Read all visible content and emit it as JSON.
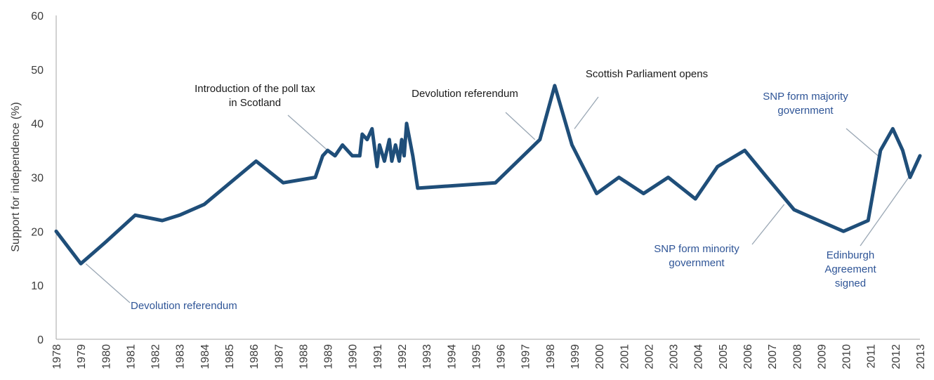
{
  "chart_data": {
    "type": "line",
    "title": "",
    "xlabel": "",
    "ylabel": "Support for independence (%)",
    "xlim": [
      1978,
      2013
    ],
    "ylim": [
      0,
      60
    ],
    "yticks": [
      0,
      10,
      20,
      30,
      40,
      50,
      60
    ],
    "xticks": [
      "1978",
      "1979",
      "1980",
      "1981",
      "1982",
      "1983",
      "1984",
      "1985",
      "1986",
      "1987",
      "1988",
      "1989",
      "1990",
      "1991",
      "1992",
      "1993",
      "1994",
      "1995",
      "1996",
      "1997",
      "1998",
      "1999",
      "2000",
      "2001",
      "2002",
      "2003",
      "2004",
      "2005",
      "2006",
      "2007",
      "2008",
      "2009",
      "2010",
      "2011",
      "2012",
      "2013"
    ],
    "grid": false,
    "line_color": "#1f4e79",
    "series": [
      {
        "x": [
          1978.0,
          1979.0,
          1980.0,
          1981.2,
          1982.3,
          1983.0,
          1984.0,
          1986.1,
          1987.2,
          1988.5,
          1988.8,
          1989.0,
          1989.3,
          1989.6,
          1990.0,
          1990.3,
          1990.4,
          1990.6,
          1990.8,
          1991.0,
          1991.1,
          1991.3,
          1991.5,
          1991.6,
          1991.75,
          1991.9,
          1992.0,
          1992.1,
          1992.2,
          1992.45,
          1992.65,
          1995.8,
          1997.6,
          1998.2,
          1998.9,
          1999.9,
          2000.8,
          2001.8,
          2002.8,
          2003.9,
          2004.8,
          2005.9,
          2006.8,
          2007.9,
          2008.9,
          2009.9,
          2010.9,
          2011.4,
          2011.9,
          2012.3,
          2012.6,
          2013.0
        ],
        "y": [
          20,
          14,
          18,
          23,
          22,
          23,
          25,
          33,
          29,
          30,
          34,
          35,
          34,
          36,
          34,
          34,
          38,
          37,
          39,
          32,
          36,
          33,
          37,
          33,
          36,
          33,
          37,
          34,
          40,
          34,
          28,
          29,
          37,
          47,
          36,
          27,
          30,
          27,
          30,
          26,
          32,
          35,
          30,
          24,
          22,
          20,
          22,
          35,
          39,
          35,
          30,
          34
        ]
      }
    ],
    "annotations": [
      {
        "text": [
          "Devolution referendum"
        ],
        "color": "#2f5597",
        "target": [
          1979.2,
          14
        ]
      },
      {
        "text": [
          "Introduction of the poll tax",
          "in Scotland"
        ],
        "color": "#1a1a1a",
        "target": [
          1989.0,
          35
        ]
      },
      {
        "text": [
          "Devolution referendum"
        ],
        "color": "#1a1a1a",
        "target": [
          1997.4,
          37
        ]
      },
      {
        "text": [
          "Scottish Parliament opens"
        ],
        "color": "#1a1a1a",
        "target": [
          1999.0,
          39
        ]
      },
      {
        "text": [
          "SNP form minority",
          "government"
        ],
        "color": "#2f5597",
        "target": [
          2007.5,
          25
        ]
      },
      {
        "text": [
          "SNP form majority",
          "government"
        ],
        "color": "#2f5597",
        "target": [
          2011.3,
          34
        ]
      },
      {
        "text": [
          "Edinburgh",
          "Agreement",
          "signed"
        ],
        "color": "#2f5597",
        "target": [
          2012.7,
          31
        ]
      }
    ]
  }
}
